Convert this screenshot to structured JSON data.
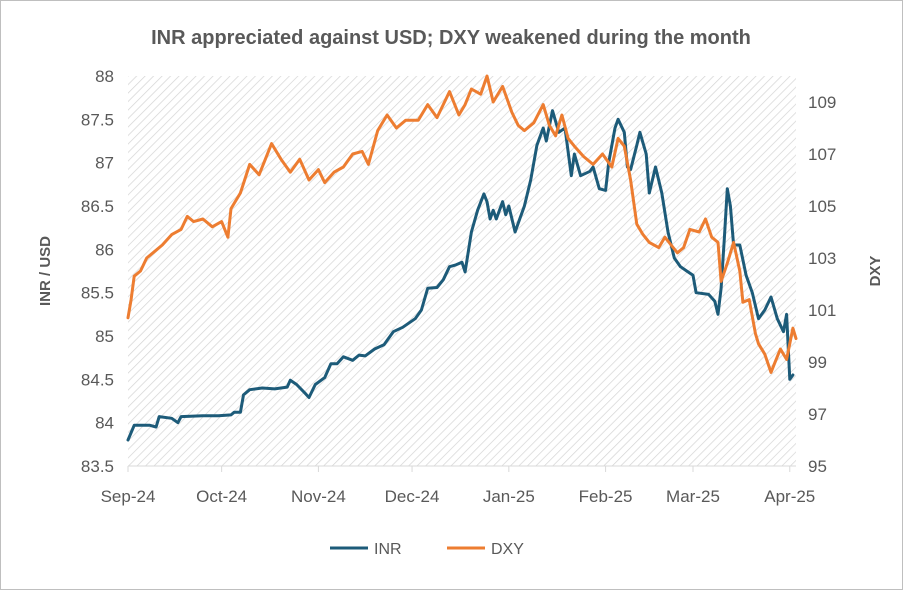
{
  "chart_data": {
    "type": "line",
    "title": "INR appreciated against USD; DXY weakened during the month",
    "ylabel_left": "INR / USD",
    "ylabel_right": "DXY",
    "ylim_left": [
      83.5,
      88
    ],
    "ylim_right": [
      95,
      110
    ],
    "yticks_left": [
      "83.5",
      "84",
      "84.5",
      "85",
      "85.5",
      "86",
      "86.5",
      "87",
      "87.5",
      "88"
    ],
    "yticks_right": [
      "95",
      "97",
      "99",
      "101",
      "103",
      "105",
      "107",
      "109"
    ],
    "xticks": [
      {
        "date": "2024-09-01",
        "label": "Sep-24"
      },
      {
        "date": "2024-10-01",
        "label": "Oct-24"
      },
      {
        "date": "2024-11-01",
        "label": "Nov-24"
      },
      {
        "date": "2024-12-01",
        "label": "Dec-24"
      },
      {
        "date": "2025-01-01",
        "label": "Jan-25"
      },
      {
        "date": "2025-02-01",
        "label": "Feb-25"
      },
      {
        "date": "2025-03-01",
        "label": "Mar-25"
      },
      {
        "date": "2025-04-01",
        "label": "Apr-25"
      }
    ],
    "xlim": [
      "2024-09-01",
      "2025-04-03"
    ],
    "grid": false,
    "legend": "bottom",
    "colors": {
      "INR": "#1d5b79",
      "DXY": "#ed7d31",
      "plot_hatch": "#d4d4d4",
      "text": "#595959"
    },
    "series": [
      {
        "name": "INR",
        "axis": "left",
        "points": [
          [
            "2024-09-01",
            83.8
          ],
          [
            "2024-09-03",
            83.97
          ],
          [
            "2024-09-08",
            83.97
          ],
          [
            "2024-09-10",
            83.95
          ],
          [
            "2024-09-11",
            84.07
          ],
          [
            "2024-09-15",
            84.05
          ],
          [
            "2024-09-17",
            84.0
          ],
          [
            "2024-09-18",
            84.07
          ],
          [
            "2024-09-25",
            84.08
          ],
          [
            "2024-09-30",
            84.08
          ],
          [
            "2024-10-04",
            84.09
          ],
          [
            "2024-10-05",
            84.12
          ],
          [
            "2024-10-07",
            84.12
          ],
          [
            "2024-10-08",
            84.32
          ],
          [
            "2024-10-10",
            84.38
          ],
          [
            "2024-10-14",
            84.4
          ],
          [
            "2024-10-18",
            84.39
          ],
          [
            "2024-10-22",
            84.41
          ],
          [
            "2024-10-23",
            84.49
          ],
          [
            "2024-10-25",
            84.44
          ],
          [
            "2024-10-28",
            84.33
          ],
          [
            "2024-10-29",
            84.29
          ],
          [
            "2024-10-31",
            84.44
          ],
          [
            "2024-11-03",
            84.52
          ],
          [
            "2024-11-05",
            84.68
          ],
          [
            "2024-11-07",
            84.68
          ],
          [
            "2024-11-09",
            84.76
          ],
          [
            "2024-11-12",
            84.72
          ],
          [
            "2024-11-14",
            84.78
          ],
          [
            "2024-11-16",
            84.77
          ],
          [
            "2024-11-19",
            84.85
          ],
          [
            "2024-11-22",
            84.9
          ],
          [
            "2024-11-25",
            85.05
          ],
          [
            "2024-11-28",
            85.1
          ],
          [
            "2024-12-02",
            85.2
          ],
          [
            "2024-12-04",
            85.3
          ],
          [
            "2024-12-06",
            85.55
          ],
          [
            "2024-12-09",
            85.56
          ],
          [
            "2024-12-11",
            85.65
          ],
          [
            "2024-12-13",
            85.8
          ],
          [
            "2024-12-15",
            85.82
          ],
          [
            "2024-12-17",
            85.85
          ],
          [
            "2024-12-18",
            85.74
          ],
          [
            "2024-12-20",
            86.2
          ],
          [
            "2024-12-22",
            86.45
          ],
          [
            "2024-12-24",
            86.64
          ],
          [
            "2024-12-25",
            86.55
          ],
          [
            "2024-12-26",
            86.35
          ],
          [
            "2024-12-27",
            86.45
          ],
          [
            "2024-12-28",
            86.35
          ],
          [
            "2024-12-30",
            86.55
          ],
          [
            "2024-12-31",
            86.4
          ],
          [
            "2025-01-01",
            86.5
          ],
          [
            "2025-01-03",
            86.2
          ],
          [
            "2025-01-04",
            86.3
          ],
          [
            "2025-01-06",
            86.5
          ],
          [
            "2025-01-08",
            86.8
          ],
          [
            "2025-01-10",
            87.2
          ],
          [
            "2025-01-12",
            87.4
          ],
          [
            "2025-01-13",
            87.25
          ],
          [
            "2025-01-15",
            87.6
          ],
          [
            "2025-01-17",
            87.35
          ],
          [
            "2025-01-19",
            87.4
          ],
          [
            "2025-01-21",
            86.85
          ],
          [
            "2025-01-22",
            87.1
          ],
          [
            "2025-01-24",
            86.85
          ],
          [
            "2025-01-27",
            86.9
          ],
          [
            "2025-01-28",
            86.95
          ],
          [
            "2025-01-30",
            86.7
          ],
          [
            "2025-02-01",
            86.68
          ],
          [
            "2025-02-02",
            87.0
          ],
          [
            "2025-02-04",
            87.4
          ],
          [
            "2025-02-05",
            87.5
          ],
          [
            "2025-02-07",
            87.35
          ],
          [
            "2025-02-08",
            86.95
          ],
          [
            "2025-02-09",
            86.92
          ],
          [
            "2025-02-11",
            87.2
          ],
          [
            "2025-02-12",
            87.35
          ],
          [
            "2025-02-14",
            87.1
          ],
          [
            "2025-02-15",
            86.65
          ],
          [
            "2025-02-17",
            86.95
          ],
          [
            "2025-02-19",
            86.65
          ],
          [
            "2025-02-21",
            86.2
          ],
          [
            "2025-02-23",
            85.9
          ],
          [
            "2025-02-25",
            85.8
          ],
          [
            "2025-02-27",
            85.75
          ],
          [
            "2025-03-01",
            85.7
          ],
          [
            "2025-03-02",
            85.5
          ],
          [
            "2025-03-06",
            85.48
          ],
          [
            "2025-03-08",
            85.4
          ],
          [
            "2025-03-09",
            85.25
          ],
          [
            "2025-03-10",
            85.55
          ],
          [
            "2025-03-11",
            86.1
          ],
          [
            "2025-03-12",
            86.7
          ],
          [
            "2025-03-13",
            86.5
          ],
          [
            "2025-03-14",
            86.05
          ],
          [
            "2025-03-16",
            86.05
          ],
          [
            "2025-03-18",
            85.7
          ],
          [
            "2025-03-20",
            85.5
          ],
          [
            "2025-03-22",
            85.2
          ],
          [
            "2025-03-24",
            85.3
          ],
          [
            "2025-03-26",
            85.45
          ],
          [
            "2025-03-28",
            85.2
          ],
          [
            "2025-03-30",
            85.05
          ],
          [
            "2025-03-31",
            85.25
          ],
          [
            "2025-04-01",
            84.5
          ],
          [
            "2025-04-02",
            84.55
          ]
        ]
      },
      {
        "name": "DXY",
        "axis": "right",
        "points": [
          [
            "2024-09-01",
            100.7
          ],
          [
            "2024-09-02",
            101.4
          ],
          [
            "2024-09-03",
            102.3
          ],
          [
            "2024-09-05",
            102.5
          ],
          [
            "2024-09-07",
            103.0
          ],
          [
            "2024-09-09",
            103.2
          ],
          [
            "2024-09-12",
            103.5
          ],
          [
            "2024-09-15",
            103.9
          ],
          [
            "2024-09-18",
            104.1
          ],
          [
            "2024-09-20",
            104.6
          ],
          [
            "2024-09-22",
            104.4
          ],
          [
            "2024-09-25",
            104.5
          ],
          [
            "2024-09-28",
            104.2
          ],
          [
            "2024-10-01",
            104.4
          ],
          [
            "2024-10-03",
            103.8
          ],
          [
            "2024-10-04",
            104.9
          ],
          [
            "2024-10-07",
            105.5
          ],
          [
            "2024-10-10",
            106.6
          ],
          [
            "2024-10-13",
            106.2
          ],
          [
            "2024-10-17",
            107.4
          ],
          [
            "2024-10-20",
            106.8
          ],
          [
            "2024-10-23",
            106.3
          ],
          [
            "2024-10-26",
            106.8
          ],
          [
            "2024-10-29",
            106.0
          ],
          [
            "2024-11-01",
            106.4
          ],
          [
            "2024-11-03",
            105.9
          ],
          [
            "2024-11-06",
            106.3
          ],
          [
            "2024-11-09",
            106.5
          ],
          [
            "2024-11-12",
            107.0
          ],
          [
            "2024-11-15",
            107.1
          ],
          [
            "2024-11-17",
            106.6
          ],
          [
            "2024-11-20",
            107.9
          ],
          [
            "2024-11-23",
            108.5
          ],
          [
            "2024-11-26",
            108.0
          ],
          [
            "2024-11-29",
            108.3
          ],
          [
            "2024-12-03",
            108.3
          ],
          [
            "2024-12-06",
            108.9
          ],
          [
            "2024-12-09",
            108.4
          ],
          [
            "2024-12-13",
            109.4
          ],
          [
            "2024-12-16",
            108.5
          ],
          [
            "2024-12-18",
            108.9
          ],
          [
            "2024-12-20",
            109.5
          ],
          [
            "2024-12-23",
            109.3
          ],
          [
            "2024-12-25",
            110.0
          ],
          [
            "2024-12-27",
            109.0
          ],
          [
            "2024-12-30",
            109.6
          ],
          [
            "2025-01-02",
            108.6
          ],
          [
            "2025-01-04",
            108.1
          ],
          [
            "2025-01-06",
            107.9
          ],
          [
            "2025-01-09",
            108.2
          ],
          [
            "2025-01-12",
            108.9
          ],
          [
            "2025-01-14",
            108.1
          ],
          [
            "2025-01-16",
            107.7
          ],
          [
            "2025-01-18",
            108.5
          ],
          [
            "2025-01-20",
            107.6
          ],
          [
            "2025-01-22",
            107.3
          ],
          [
            "2025-01-25",
            106.9
          ],
          [
            "2025-01-28",
            106.6
          ],
          [
            "2025-01-31",
            107.0
          ],
          [
            "2025-02-03",
            106.5
          ],
          [
            "2025-02-05",
            107.6
          ],
          [
            "2025-02-07",
            107.3
          ],
          [
            "2025-02-09",
            106.0
          ],
          [
            "2025-02-11",
            104.3
          ],
          [
            "2025-02-13",
            103.9
          ],
          [
            "2025-02-15",
            103.6
          ],
          [
            "2025-02-18",
            103.4
          ],
          [
            "2025-02-20",
            103.8
          ],
          [
            "2025-02-22",
            103.5
          ],
          [
            "2025-02-24",
            103.2
          ],
          [
            "2025-02-26",
            103.4
          ],
          [
            "2025-02-28",
            104.1
          ],
          [
            "2025-03-03",
            104.0
          ],
          [
            "2025-03-05",
            104.5
          ],
          [
            "2025-03-07",
            103.8
          ],
          [
            "2025-03-09",
            103.6
          ],
          [
            "2025-03-10",
            102.1
          ],
          [
            "2025-03-12",
            102.8
          ],
          [
            "2025-03-14",
            103.6
          ],
          [
            "2025-03-16",
            102.5
          ],
          [
            "2025-03-17",
            101.3
          ],
          [
            "2025-03-19",
            101.4
          ],
          [
            "2025-03-21",
            100.1
          ],
          [
            "2025-03-22",
            99.7
          ],
          [
            "2025-03-24",
            99.3
          ],
          [
            "2025-03-26",
            98.6
          ],
          [
            "2025-03-27",
            98.9
          ],
          [
            "2025-03-29",
            99.5
          ],
          [
            "2025-03-31",
            99.1
          ],
          [
            "2025-04-02",
            100.3
          ],
          [
            "2025-04-03",
            99.9
          ]
        ]
      }
    ]
  }
}
